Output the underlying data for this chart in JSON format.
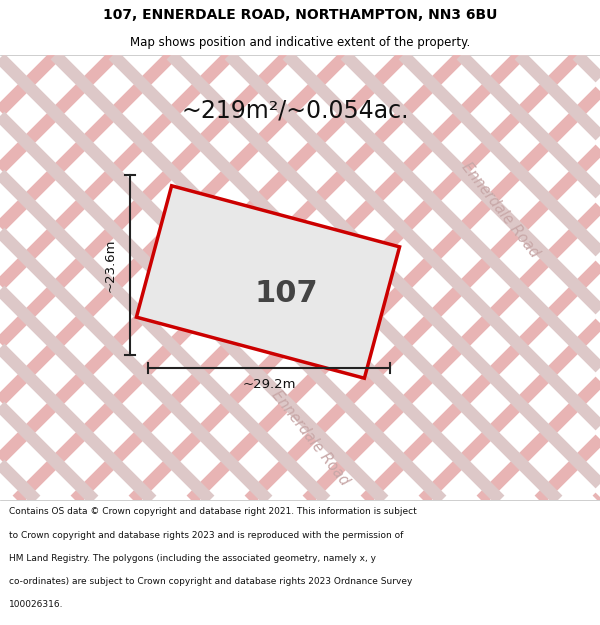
{
  "title_line1": "107, ENNERDALE ROAD, NORTHAMPTON, NN3 6BU",
  "title_line2": "Map shows position and indicative extent of the property.",
  "area_text": "~219m²/~0.054ac.",
  "property_label": "107",
  "dim_width": "~29.2m",
  "dim_height": "~23.6m",
  "road_label_right": "Ennerdale Road",
  "road_label_bottom": "Ennerdale Road",
  "footer_lines": [
    "Contains OS data © Crown copyright and database right 2021. This information is subject",
    "to Crown copyright and database rights 2023 and is reproduced with the permission of",
    "HM Land Registry. The polygons (including the associated geometry, namely x, y",
    "co-ordinates) are subject to Crown copyright and database rights 2023 Ordnance Survey",
    "100026316."
  ],
  "map_bg": "#f0f0f0",
  "road_line_color1": "#e8b4b4",
  "road_line_color2": "#ddc8c8",
  "property_edge_color": "#cc0000",
  "property_fill": "#e8e8e8",
  "dim_line_color": "#222222",
  "title_bg": "#ffffff",
  "footer_bg": "#ffffff",
  "road_text_color": "#c8a8a8"
}
